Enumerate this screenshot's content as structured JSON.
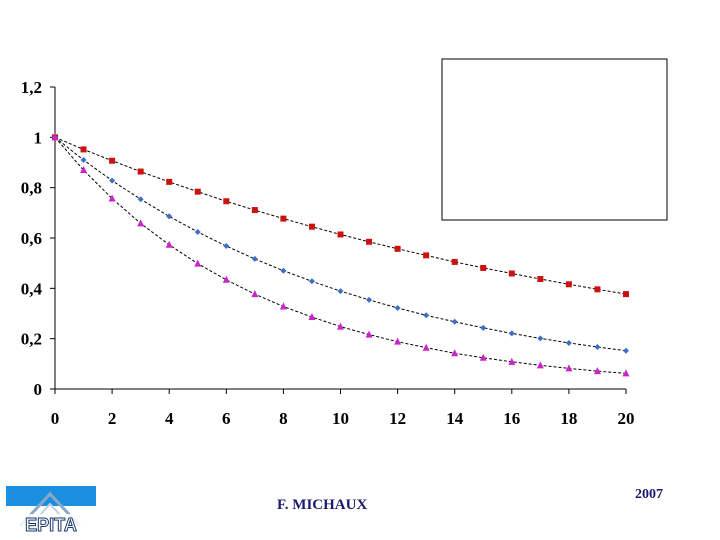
{
  "footer": {
    "author": "F. MICHAUX",
    "year": "2007",
    "logo_text": "EPITA"
  },
  "chart_data": {
    "type": "line",
    "title": "",
    "xlabel": "",
    "ylabel": "",
    "xlim": [
      0,
      20
    ],
    "ylim": [
      0,
      1.2
    ],
    "xticks": [
      "0",
      "2",
      "4",
      "6",
      "8",
      "10",
      "12",
      "14",
      "16",
      "18",
      "20"
    ],
    "yticks": [
      "0",
      "0,2",
      "0,4",
      "0,6",
      "0,8",
      "1",
      "1,2"
    ],
    "legend": "top-right (empty box)",
    "grid": false,
    "x": [
      0,
      1,
      2,
      3,
      4,
      5,
      6,
      7,
      8,
      9,
      10,
      11,
      12,
      13,
      14,
      15,
      16,
      17,
      18,
      19,
      20
    ],
    "series": [
      {
        "marker": "square",
        "color": "#cc1111",
        "values": [
          1,
          0.952,
          0.907,
          0.864,
          0.823,
          0.784,
          0.746,
          0.711,
          0.677,
          0.645,
          0.614,
          0.585,
          0.557,
          0.531,
          0.505,
          0.481,
          0.459,
          0.437,
          0.416,
          0.396,
          0.377
        ]
      },
      {
        "marker": "diamond",
        "color": "#3a6fc4",
        "values": [
          1,
          0.91,
          0.828,
          0.754,
          0.686,
          0.624,
          0.568,
          0.517,
          0.47,
          0.428,
          0.389,
          0.354,
          0.322,
          0.293,
          0.267,
          0.243,
          0.221,
          0.201,
          0.183,
          0.167,
          0.152
        ]
      },
      {
        "marker": "triangle",
        "color": "#cc22cc",
        "values": [
          1,
          0.87,
          0.757,
          0.658,
          0.573,
          0.498,
          0.434,
          0.377,
          0.328,
          0.286,
          0.248,
          0.216,
          0.188,
          0.164,
          0.142,
          0.124,
          0.108,
          0.094,
          0.082,
          0.071,
          0.062
        ]
      }
    ]
  }
}
